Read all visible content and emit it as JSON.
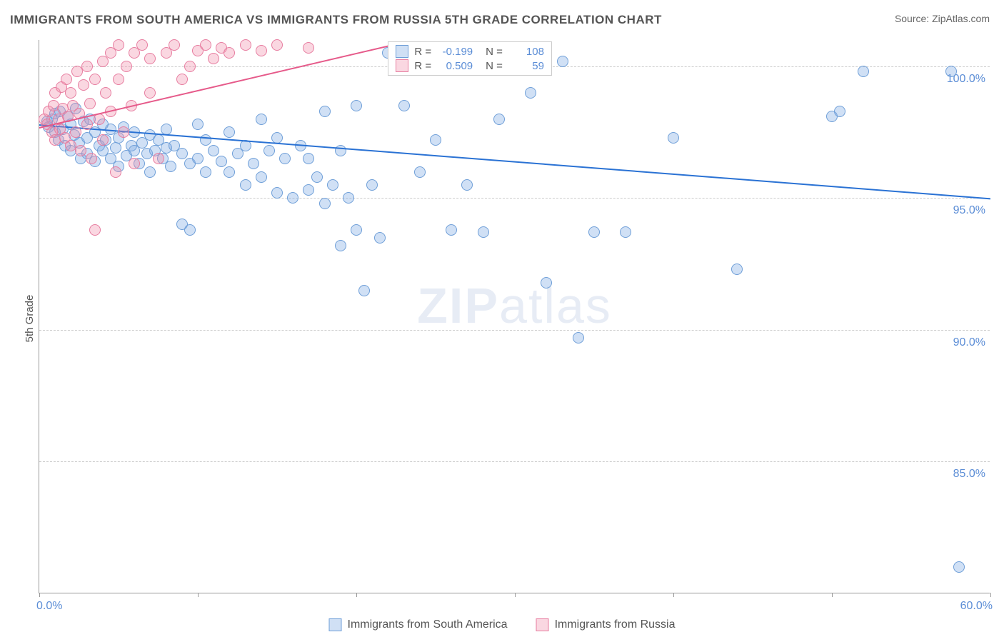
{
  "title": "IMMIGRANTS FROM SOUTH AMERICA VS IMMIGRANTS FROM RUSSIA 5TH GRADE CORRELATION CHART",
  "source": "Source: ZipAtlas.com",
  "ylabel": "5th Grade",
  "watermark_zip": "ZIP",
  "watermark_atlas": "atlas",
  "chart": {
    "type": "scatter",
    "background_color": "#ffffff",
    "grid_color": "#cccccc",
    "axis_color": "#999999",
    "tick_label_color": "#5b8dd6",
    "xlim": [
      0,
      60
    ],
    "ylim": [
      80,
      101
    ],
    "xticks": [
      0,
      10,
      20,
      30,
      40,
      50,
      60
    ],
    "xtick_labels": {
      "0": "0.0%",
      "60": "60.0%"
    },
    "yticks": [
      85,
      90,
      95,
      100
    ],
    "ytick_labels": [
      "85.0%",
      "90.0%",
      "95.0%",
      "100.0%"
    ],
    "marker_radius": 8,
    "marker_stroke_width": 1.5,
    "series": [
      {
        "name": "Immigrants from South America",
        "fill_color": "rgba(120,165,225,0.35)",
        "stroke_color": "#6f9fd8",
        "line_color": "#2a72d4",
        "line_width": 2,
        "R": "-0.199",
        "N": "108",
        "regression": {
          "x1": 0,
          "y1": 97.8,
          "x2": 60,
          "y2": 95.0
        },
        "points": [
          [
            0.5,
            97.9
          ],
          [
            0.6,
            97.7
          ],
          [
            0.8,
            98.0
          ],
          [
            1.0,
            97.5
          ],
          [
            1.0,
            98.2
          ],
          [
            1.2,
            97.2
          ],
          [
            1.3,
            98.3
          ],
          [
            1.5,
            97.6
          ],
          [
            1.6,
            97.0
          ],
          [
            1.8,
            98.1
          ],
          [
            2.0,
            97.8
          ],
          [
            2.0,
            96.8
          ],
          [
            2.2,
            97.4
          ],
          [
            2.3,
            98.4
          ],
          [
            2.5,
            97.1
          ],
          [
            2.6,
            96.5
          ],
          [
            2.8,
            97.9
          ],
          [
            3.0,
            97.3
          ],
          [
            3.0,
            96.7
          ],
          [
            3.2,
            98.0
          ],
          [
            3.5,
            97.5
          ],
          [
            3.5,
            96.4
          ],
          [
            3.8,
            97.0
          ],
          [
            4.0,
            97.8
          ],
          [
            4.0,
            96.8
          ],
          [
            4.2,
            97.2
          ],
          [
            4.5,
            96.5
          ],
          [
            4.5,
            97.6
          ],
          [
            4.8,
            96.9
          ],
          [
            5.0,
            97.3
          ],
          [
            5.0,
            96.2
          ],
          [
            5.3,
            97.7
          ],
          [
            5.5,
            96.6
          ],
          [
            5.8,
            97.0
          ],
          [
            6.0,
            96.8
          ],
          [
            6.0,
            97.5
          ],
          [
            6.3,
            96.3
          ],
          [
            6.5,
            97.1
          ],
          [
            6.8,
            96.7
          ],
          [
            7.0,
            97.4
          ],
          [
            7.0,
            96.0
          ],
          [
            7.3,
            96.8
          ],
          [
            7.5,
            97.2
          ],
          [
            7.8,
            96.5
          ],
          [
            8.0,
            96.9
          ],
          [
            8.0,
            97.6
          ],
          [
            8.3,
            96.2
          ],
          [
            8.5,
            97.0
          ],
          [
            9.0,
            96.7
          ],
          [
            9.0,
            94.0
          ],
          [
            9.5,
            96.3
          ],
          [
            9.5,
            93.8
          ],
          [
            10.0,
            97.8
          ],
          [
            10.0,
            96.5
          ],
          [
            10.5,
            96.0
          ],
          [
            10.5,
            97.2
          ],
          [
            11.0,
            96.8
          ],
          [
            11.5,
            96.4
          ],
          [
            12.0,
            97.5
          ],
          [
            12.0,
            96.0
          ],
          [
            12.5,
            96.7
          ],
          [
            13.0,
            95.5
          ],
          [
            13.0,
            97.0
          ],
          [
            13.5,
            96.3
          ],
          [
            14.0,
            98.0
          ],
          [
            14.0,
            95.8
          ],
          [
            14.5,
            96.8
          ],
          [
            15.0,
            97.3
          ],
          [
            15.0,
            95.2
          ],
          [
            15.5,
            96.5
          ],
          [
            16.0,
            95.0
          ],
          [
            16.5,
            97.0
          ],
          [
            17.0,
            95.3
          ],
          [
            17.0,
            96.5
          ],
          [
            17.5,
            95.8
          ],
          [
            18.0,
            98.3
          ],
          [
            18.0,
            94.8
          ],
          [
            18.5,
            95.5
          ],
          [
            19.0,
            93.2
          ],
          [
            19.0,
            96.8
          ],
          [
            19.5,
            95.0
          ],
          [
            20.0,
            98.5
          ],
          [
            20.0,
            93.8
          ],
          [
            20.5,
            91.5
          ],
          [
            21.0,
            95.5
          ],
          [
            21.5,
            93.5
          ],
          [
            22.0,
            100.5
          ],
          [
            23.0,
            98.5
          ],
          [
            24.0,
            96.0
          ],
          [
            25.0,
            97.2
          ],
          [
            26.0,
            93.8
          ],
          [
            27.0,
            95.5
          ],
          [
            28.0,
            93.7
          ],
          [
            29.0,
            98.0
          ],
          [
            30.0,
            100.3
          ],
          [
            31.0,
            99.0
          ],
          [
            32.0,
            91.8
          ],
          [
            33.0,
            100.2
          ],
          [
            34.0,
            89.7
          ],
          [
            35.0,
            93.7
          ],
          [
            37.0,
            93.7
          ],
          [
            40.0,
            97.3
          ],
          [
            44.0,
            92.3
          ],
          [
            50.0,
            98.1
          ],
          [
            50.5,
            98.3
          ],
          [
            52.0,
            99.8
          ],
          [
            57.5,
            99.8
          ],
          [
            58.0,
            81.0
          ]
        ]
      },
      {
        "name": "Immigrants from Russia",
        "fill_color": "rgba(240,140,170,0.35)",
        "stroke_color": "#e77da0",
        "line_color": "#e65a8a",
        "line_width": 2,
        "R": "0.509",
        "N": "59",
        "regression": {
          "x1": 0,
          "y1": 97.7,
          "x2": 22,
          "y2": 100.8
        },
        "points": [
          [
            0.3,
            98.0
          ],
          [
            0.5,
            97.8
          ],
          [
            0.6,
            98.3
          ],
          [
            0.8,
            97.5
          ],
          [
            0.9,
            98.5
          ],
          [
            1.0,
            97.2
          ],
          [
            1.0,
            99.0
          ],
          [
            1.2,
            98.0
          ],
          [
            1.3,
            97.6
          ],
          [
            1.4,
            99.2
          ],
          [
            1.5,
            98.4
          ],
          [
            1.6,
            97.3
          ],
          [
            1.7,
            99.5
          ],
          [
            1.8,
            98.1
          ],
          [
            2.0,
            97.0
          ],
          [
            2.0,
            99.0
          ],
          [
            2.1,
            98.5
          ],
          [
            2.3,
            97.5
          ],
          [
            2.4,
            99.8
          ],
          [
            2.5,
            98.2
          ],
          [
            2.6,
            96.8
          ],
          [
            2.8,
            99.3
          ],
          [
            3.0,
            97.8
          ],
          [
            3.0,
            100.0
          ],
          [
            3.2,
            98.6
          ],
          [
            3.3,
            96.5
          ],
          [
            3.5,
            99.5
          ],
          [
            3.5,
            93.8
          ],
          [
            3.8,
            98.0
          ],
          [
            4.0,
            100.2
          ],
          [
            4.0,
            97.2
          ],
          [
            4.2,
            99.0
          ],
          [
            4.5,
            98.3
          ],
          [
            4.5,
            100.5
          ],
          [
            4.8,
            96.0
          ],
          [
            5.0,
            99.5
          ],
          [
            5.0,
            100.8
          ],
          [
            5.3,
            97.5
          ],
          [
            5.5,
            100.0
          ],
          [
            5.8,
            98.5
          ],
          [
            6.0,
            100.5
          ],
          [
            6.0,
            96.3
          ],
          [
            6.5,
            100.8
          ],
          [
            7.0,
            99.0
          ],
          [
            7.0,
            100.3
          ],
          [
            7.5,
            96.5
          ],
          [
            8.0,
            100.5
          ],
          [
            8.5,
            100.8
          ],
          [
            9.0,
            99.5
          ],
          [
            9.5,
            100.0
          ],
          [
            10.0,
            100.6
          ],
          [
            10.5,
            100.8
          ],
          [
            11.0,
            100.3
          ],
          [
            11.5,
            100.7
          ],
          [
            12.0,
            100.5
          ],
          [
            13.0,
            100.8
          ],
          [
            14.0,
            100.6
          ],
          [
            15.0,
            100.8
          ],
          [
            17.0,
            100.7
          ]
        ]
      }
    ]
  },
  "bottom_legend": {
    "series1": "Immigrants from South America",
    "series2": "Immigrants from Russia"
  }
}
